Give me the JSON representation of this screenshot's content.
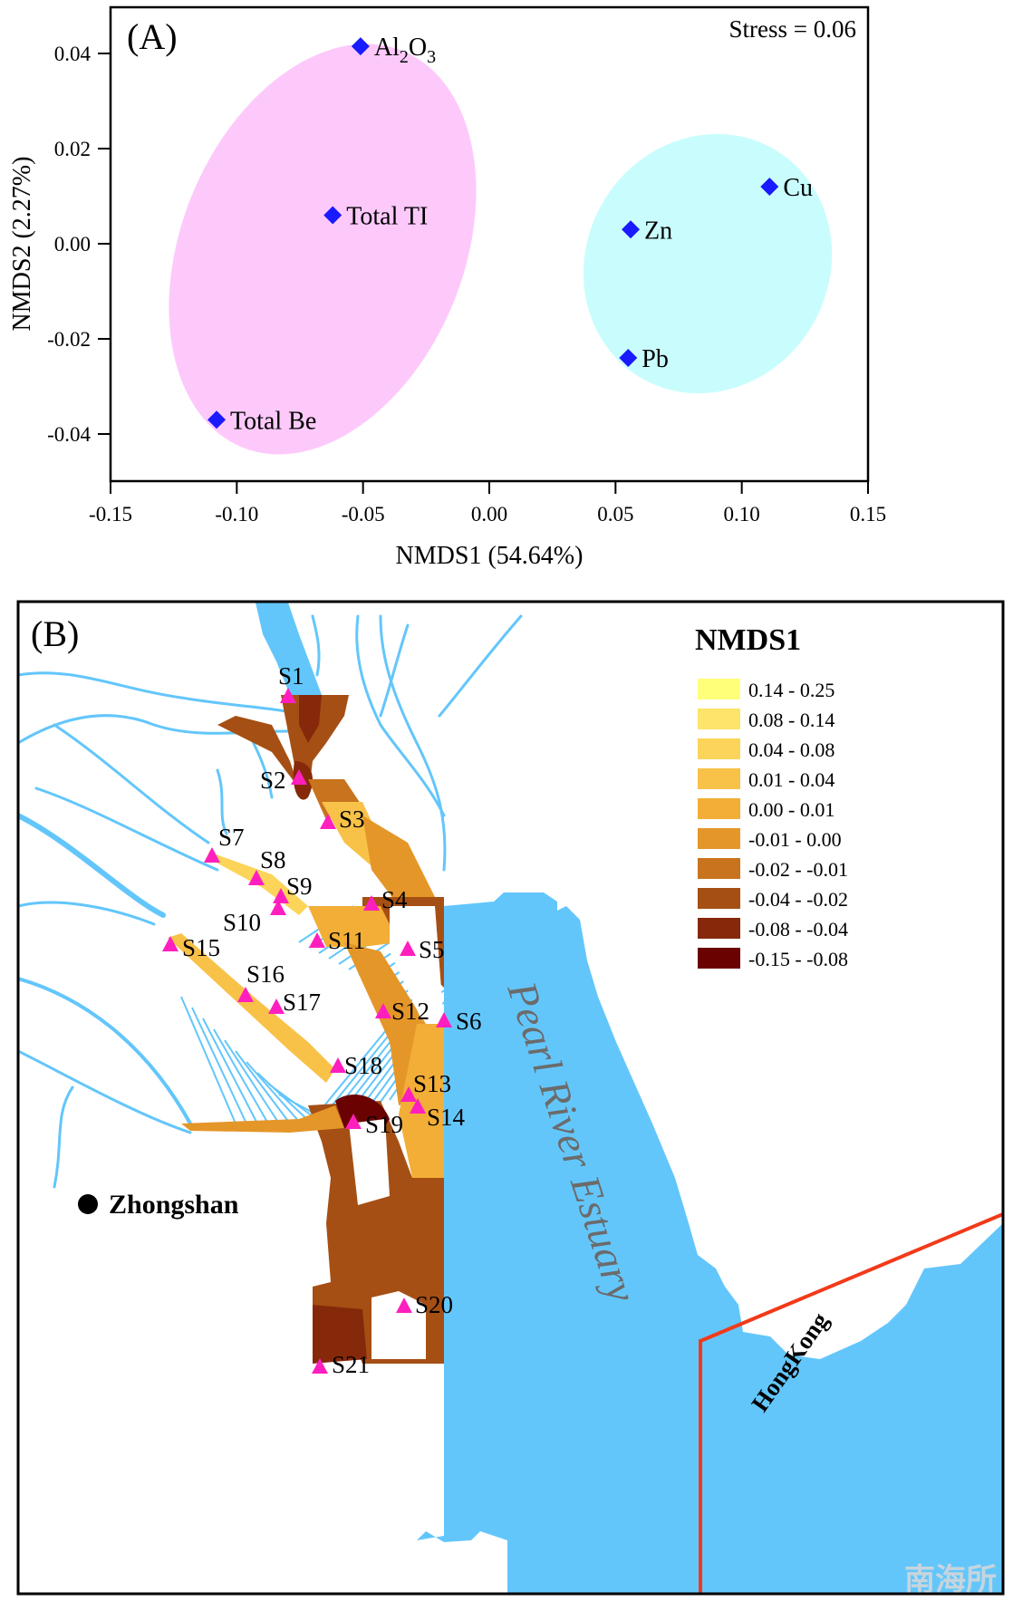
{
  "chart_data": [
    {
      "type": "scatter",
      "panel_label": "(A)",
      "annotation": "Stress = 0.06",
      "xlabel": "NMDS1 (54.64%)",
      "ylabel": "NMDS2 (2.27%)",
      "xlim": [
        -0.15,
        0.15
      ],
      "ylim": [
        -0.05,
        0.0495
      ],
      "xticks": [
        -0.15,
        -0.1,
        -0.05,
        0.0,
        0.05,
        0.1,
        0.15
      ],
      "xtick_labels": [
        "-0.15",
        "-0.10",
        "-0.05",
        "0.00",
        "0.05",
        "0.10",
        "0.15"
      ],
      "yticks": [
        0.04,
        0.02,
        0.0,
        -0.02,
        -0.04
      ],
      "ytick_labels": [
        "0.04",
        "0.02",
        "0.00",
        "-0.02",
        "-0.04"
      ],
      "grid": false,
      "marker_color": "#1a1aff",
      "points": [
        {
          "label": "Al2O3",
          "label_main": "Al",
          "sub1": "2",
          "mid": "O",
          "sub2": "3",
          "x": -0.051,
          "y": 0.0415,
          "group": 1
        },
        {
          "label": "Total TI",
          "x": -0.062,
          "y": 0.006,
          "group": 1
        },
        {
          "label": "Total Be",
          "x": -0.108,
          "y": -0.037,
          "group": 1
        },
        {
          "label": "Cu",
          "x": 0.111,
          "y": 0.012,
          "group": 2
        },
        {
          "label": "Zn",
          "x": 0.056,
          "y": 0.003,
          "group": 2
        },
        {
          "label": "Pb",
          "x": 0.055,
          "y": -0.024,
          "group": 2
        }
      ],
      "groups": [
        {
          "id": 1,
          "color": "#fdc9fb",
          "members": [
            "Al2O3",
            "Total TI",
            "Total Be"
          ]
        },
        {
          "id": 2,
          "color": "#c9fdfd",
          "members": [
            "Cu",
            "Zn",
            "Pb"
          ]
        }
      ]
    },
    {
      "type": "map",
      "panel_label": "(B)",
      "legend_title": "NMDS1",
      "legend": [
        {
          "label": "0.14 - 0.25",
          "color": "#ffff7a"
        },
        {
          "label": "0.08 - 0.14",
          "color": "#fde46a"
        },
        {
          "label": "0.04 - 0.08",
          "color": "#fcd45a"
        },
        {
          "label": "0.01 - 0.04",
          "color": "#f8c148"
        },
        {
          "label": "0.00 - 0.01",
          "color": "#f2ae36"
        },
        {
          "label": "-0.01 - 0.00",
          "color": "#e59629"
        },
        {
          "label": "-0.02 - -0.01",
          "color": "#c8731e"
        },
        {
          "label": "-0.04 - -0.02",
          "color": "#a64f14"
        },
        {
          "label": "-0.08 - -0.04",
          "color": "#86290a"
        },
        {
          "label": "-0.15 - -0.08",
          "color": "#6a0202"
        }
      ],
      "water_color": "#63c6fb",
      "site_color": "#ff1fbf",
      "sites": [
        "S1",
        "S2",
        "S3",
        "S4",
        "S5",
        "S6",
        "S7",
        "S8",
        "S9",
        "S10",
        "S11",
        "S12",
        "S13",
        "S14",
        "S15",
        "S16",
        "S17",
        "S18",
        "S19",
        "S20",
        "S21"
      ],
      "city": "Zhongshan",
      "estuary_label": "Pearl River Estuary",
      "region_label": "HongKong",
      "border_color": "#f23a1a",
      "watermark": "南海所"
    }
  ]
}
